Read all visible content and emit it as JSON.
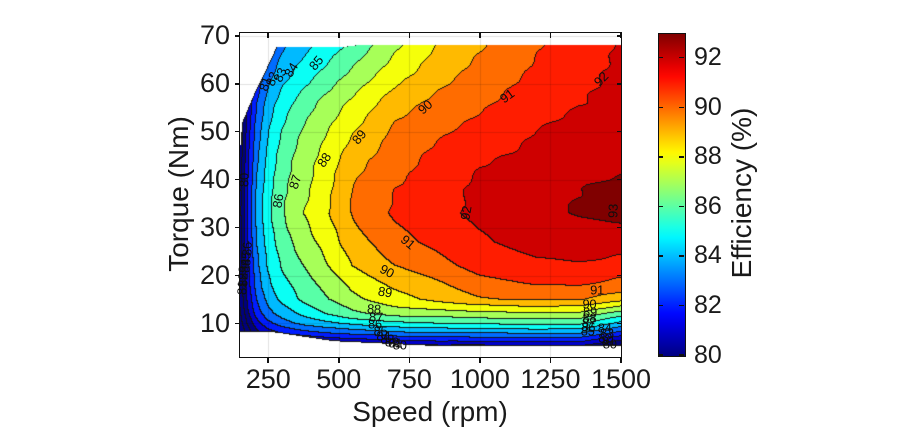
{
  "chart_data": {
    "type": "heatmap",
    "subtype": "filled-contour-efficiency-map",
    "title": "",
    "xlabel": "Speed (rpm)",
    "ylabel": "Torque (Nm)",
    "colorbar_label": "Efficiency (%)",
    "colormap": "jet",
    "grid": true,
    "xlim": [
      150,
      1500
    ],
    "ylim": [
      3,
      70.6
    ],
    "clim": [
      80,
      93
    ],
    "x_ticks": [
      250,
      500,
      750,
      1000,
      1250,
      1500
    ],
    "y_ticks": [
      10,
      20,
      30,
      40,
      50,
      60,
      70
    ],
    "colorbar_ticks": [
      80,
      82,
      84,
      86,
      88,
      90,
      92
    ],
    "contour_levels_percent": [
      80,
      81,
      82,
      83,
      84,
      85,
      86,
      87,
      88,
      89,
      90,
      91,
      92,
      93
    ],
    "speed_rpm": [
      150,
      180,
      210,
      250,
      300,
      375,
      450,
      550,
      700,
      850,
      1000,
      1200,
      1350,
      1500
    ],
    "torque_Nm": [
      4,
      6,
      8,
      10,
      12,
      15,
      18,
      22,
      27,
      33,
      38,
      44,
      50,
      56,
      62,
      68
    ],
    "efficiency_percent": [
      [
        76.5,
        77.2,
        77.6,
        78.0,
        78.3,
        78.6,
        78.8,
        78.9,
        79.1,
        79.2,
        79.2,
        79.3,
        79.3,
        78.6
      ],
      [
        77.2,
        78.3,
        79.1,
        79.7,
        80.2,
        80.6,
        80.9,
        81.2,
        81.5,
        81.7,
        81.8,
        81.9,
        81.9,
        80.6
      ],
      [
        77.9,
        79.4,
        80.6,
        81.5,
        82.1,
        82.6,
        83.0,
        83.4,
        83.8,
        84.0,
        84.1,
        84.2,
        84.2,
        82.7
      ],
      [
        78.4,
        80.2,
        81.6,
        82.7,
        83.5,
        84.3,
        84.8,
        85.3,
        85.8,
        86.0,
        86.2,
        86.3,
        86.3,
        84.8
      ],
      [
        78.7,
        80.8,
        82.4,
        83.6,
        84.4,
        85.3,
        86.0,
        86.8,
        87.4,
        87.6,
        87.7,
        87.9,
        87.9,
        86.5
      ],
      [
        79.0,
        81.3,
        83.0,
        84.3,
        85.3,
        86.2,
        86.9,
        87.7,
        88.6,
        89.3,
        89.9,
        90.1,
        90.1,
        89.4
      ],
      [
        79.2,
        81.6,
        83.4,
        84.8,
        85.7,
        86.5,
        87.2,
        88.2,
        89.2,
        89.8,
        90.6,
        91.0,
        91.1,
        90.6
      ],
      [
        79.3,
        81.8,
        83.7,
        85.1,
        86.1,
        87.0,
        87.8,
        89.0,
        90.0,
        90.6,
        91.4,
        91.8,
        91.9,
        91.6
      ],
      [
        79.4,
        82.0,
        84.0,
        85.4,
        86.5,
        87.5,
        88.3,
        89.6,
        90.7,
        91.2,
        91.9,
        92.4,
        92.6,
        92.5
      ],
      [
        79.5,
        82.2,
        84.2,
        85.7,
        86.9,
        88.0,
        88.8,
        90.1,
        91.1,
        91.7,
        92.25,
        92.8,
        93.1,
        93.3
      ],
      [
        79.5,
        82.1,
        84.1,
        85.6,
        86.8,
        87.7,
        88.6,
        90.0,
        91.0,
        91.6,
        92.2,
        92.7,
        93.0,
        93.2
      ],
      [
        79.3,
        81.9,
        83.8,
        85.3,
        86.5,
        87.5,
        88.3,
        89.6,
        90.6,
        91.3,
        91.9,
        92.3,
        92.6,
        92.7
      ],
      [
        79.1,
        81.6,
        83.4,
        84.9,
        86.0,
        87.1,
        87.9,
        88.95,
        90.2,
        90.8,
        91.4,
        92.0,
        92.3,
        92.4
      ],
      [
        78.8,
        81.2,
        82.9,
        84.4,
        85.5,
        86.5,
        87.3,
        88.2,
        89.5,
        90.3,
        90.8,
        91.5,
        92.0,
        92.2
      ],
      [
        78.3,
        80.6,
        82.2,
        83.6,
        84.6,
        85.5,
        86.2,
        87.2,
        88.6,
        89.6,
        90.3,
        91.2,
        91.8,
        92.1
      ],
      [
        77.8,
        79.9,
        81.4,
        82.8,
        83.8,
        84.6,
        85.3,
        86.3,
        87.8,
        89.0,
        89.9,
        90.9,
        91.5,
        92.1
      ]
    ],
    "data_boundary": {
      "min_speed_by_torque": [
        [
          3,
          151.5
        ],
        [
          47,
          151.5
        ],
        [
          52,
          158
        ],
        [
          58.5,
          205
        ],
        [
          62,
          235
        ],
        [
          65,
          258
        ],
        [
          67.7,
          280
        ]
      ],
      "min_torque_by_speed": [
        [
          150,
          8.3
        ],
        [
          280,
          8.1
        ],
        [
          480,
          6.3
        ],
        [
          800,
          5.4
        ],
        [
          1500,
          5.3
        ]
      ],
      "max_torque_by_speed": [
        [
          150,
          67.6
        ],
        [
          500,
          67.6
        ],
        [
          560,
          68.0
        ],
        [
          1500,
          68.0
        ]
      ]
    },
    "contour_labels": [
      {
        "value": "81",
        "speed": 239,
        "torque": 60.0,
        "rot": -72
      },
      {
        "value": "82",
        "speed": 262,
        "torque": 61.0,
        "rot": -70
      },
      {
        "value": "83",
        "speed": 290,
        "torque": 61.8,
        "rot": -66
      },
      {
        "value": "84",
        "speed": 330,
        "torque": 62.8,
        "rot": -58
      },
      {
        "value": "85",
        "speed": 420,
        "torque": 64.3,
        "rot": -50
      },
      {
        "value": "86",
        "speed": 285,
        "torque": 35.6,
        "rot": -80
      },
      {
        "value": "87",
        "speed": 345,
        "torque": 39.5,
        "rot": -72
      },
      {
        "value": "88",
        "speed": 448,
        "torque": 44.0,
        "rot": -56
      },
      {
        "value": "89",
        "speed": 570,
        "torque": 49.0,
        "rot": -50
      },
      {
        "value": "90",
        "speed": 805,
        "torque": 55.2,
        "rot": -42
      },
      {
        "value": "91",
        "speed": 1095,
        "torque": 57.4,
        "rot": -36
      },
      {
        "value": "92",
        "speed": 1428,
        "torque": 61.0,
        "rot": -46
      },
      {
        "value": "92",
        "speed": 952,
        "torque": 33.0,
        "rot": -80
      },
      {
        "value": "93",
        "speed": 1473,
        "torque": 33.5,
        "rot": -88
      },
      {
        "value": "91",
        "speed": 745,
        "torque": 27.0,
        "rot": 40
      },
      {
        "value": "90",
        "speed": 672,
        "torque": 20.9,
        "rot": 28
      },
      {
        "value": "89",
        "speed": 665,
        "torque": 16.6,
        "rot": 10
      },
      {
        "value": "88",
        "speed": 625,
        "torque": 13.0,
        "rot": 4
      },
      {
        "value": "87",
        "speed": 632,
        "torque": 11.4,
        "rot": 2
      },
      {
        "value": "86",
        "speed": 628,
        "torque": 9.8,
        "rot": 0
      },
      {
        "value": "85",
        "speed": 648,
        "torque": 8.4,
        "rot": 0
      },
      {
        "value": "84",
        "speed": 658,
        "torque": 7.4,
        "rot": 0
      },
      {
        "value": "83",
        "speed": 672,
        "torque": 6.8,
        "rot": 0
      },
      {
        "value": "82",
        "speed": 688,
        "torque": 6.2,
        "rot": 0
      },
      {
        "value": "81",
        "speed": 700,
        "torque": 5.9,
        "rot": 0
      },
      {
        "value": "80",
        "speed": 716,
        "torque": 5.6,
        "rot": 0
      },
      {
        "value": "80",
        "speed": 163,
        "torque": 40.0,
        "rot": -90
      },
      {
        "value": "86",
        "speed": 176,
        "torque": 25.5,
        "rot": -88
      },
      {
        "value": "85",
        "speed": 170,
        "torque": 23.5,
        "rot": -88
      },
      {
        "value": "84",
        "speed": 166,
        "torque": 22.0,
        "rot": -88
      },
      {
        "value": "83",
        "speed": 162,
        "torque": 20.5,
        "rot": -88
      },
      {
        "value": "82",
        "speed": 159,
        "torque": 19.0,
        "rot": -88
      },
      {
        "value": "81",
        "speed": 157,
        "torque": 17.5,
        "rot": -88
      },
      {
        "value": "91",
        "speed": 1415,
        "torque": 17.0,
        "rot": 0
      },
      {
        "value": "90",
        "speed": 1388,
        "torque": 14.1,
        "rot": 0
      },
      {
        "value": "89",
        "speed": 1390,
        "torque": 12.4,
        "rot": 0
      },
      {
        "value": "88",
        "speed": 1388,
        "torque": 11.2,
        "rot": 0
      },
      {
        "value": "87",
        "speed": 1386,
        "torque": 10.1,
        "rot": 0
      },
      {
        "value": "86",
        "speed": 1384,
        "torque": 9.2,
        "rot": 0
      },
      {
        "value": "85",
        "speed": 1382,
        "torque": 8.4,
        "rot": 0
      },
      {
        "value": "84",
        "speed": 1442,
        "torque": 9.0,
        "rot": 0
      },
      {
        "value": "83",
        "speed": 1450,
        "torque": 8.0,
        "rot": 0
      },
      {
        "value": "82",
        "speed": 1444,
        "torque": 7.0,
        "rot": 0
      },
      {
        "value": "81",
        "speed": 1456,
        "torque": 6.4,
        "rot": 0
      },
      {
        "value": "80",
        "speed": 1460,
        "torque": 5.8,
        "rot": 0
      }
    ]
  },
  "figure": {
    "background": "#ffffff",
    "axis_color": "#111111",
    "text_color": "#1a1a1a",
    "contour_line_color": "#141414",
    "grid_color": "rgba(0,0,0,0.12)",
    "colorbar_bottom_color": "#000080",
    "colorbar_top_color": "#800000"
  }
}
